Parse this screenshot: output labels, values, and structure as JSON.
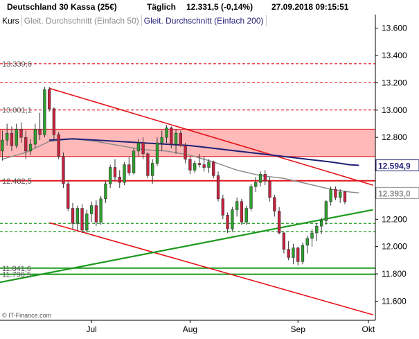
{
  "header": {
    "instrument": "Deutschland 30 Kassa (25€)",
    "interval": "Täglich",
    "quote": "12.331,5 (-0,14%)",
    "timestamp": "27.09.2018 09:15:51"
  },
  "legend": {
    "price": "Kurs",
    "ma50": "Gleit. Durchschnitt (Einfach 50)",
    "ma200": "Gleit. Durchschnitt (Einfach 200)"
  },
  "watermark": "© IT-Finance.com",
  "colors": {
    "up": "#2ca02c",
    "down": "#c8223f",
    "ma50": "#8c8c8c",
    "ma200": "#1f1f78",
    "trend_down": "#e3151a",
    "trend_up": "#1e9a1e",
    "zone": "#ff8080"
  },
  "chart_data": {
    "type": "candlestick",
    "ylim": [
      11460,
      13700
    ],
    "yticks": [
      11600,
      11800,
      12000,
      12200,
      12400,
      12600,
      12800,
      13000,
      13200,
      13400,
      13600
    ],
    "ytick_labels": [
      "11.600",
      "11.800",
      "12.000",
      "12.200",
      "12.400",
      "12.600",
      "12.800",
      "13.000",
      "13.200",
      "13.400",
      "13.600"
    ],
    "xlim": [
      -0.5,
      79.5
    ],
    "xticks": [
      {
        "label": "Jul",
        "i": 19
      },
      {
        "label": "Aug",
        "i": 40
      },
      {
        "label": "Sep",
        "i": 63
      },
      {
        "label": "Okt",
        "i": 78
      }
    ],
    "price_tags": [
      {
        "label": "12.594,9",
        "value": 12595,
        "color": "#1f1f78"
      },
      {
        "label": "12.393,0",
        "value": 12393,
        "color": "#8c8c8c"
      }
    ],
    "level_labels": [
      {
        "label": "13.339,6",
        "value": 13340
      },
      {
        "label": "13.001,1",
        "value": 13001
      },
      {
        "label": "12.482,5",
        "value": 12482
      },
      {
        "label": "11.841,6",
        "value": 11842
      },
      {
        "label": "11.796,5",
        "value": 11797
      }
    ],
    "levels": [
      {
        "value": 13340,
        "style": "dashed",
        "color": "#e3151a"
      },
      {
        "value": 13200,
        "style": "dashed",
        "color": "#e3151a"
      },
      {
        "value": 13001,
        "style": "dashed",
        "color": "#e3151a"
      },
      {
        "value": 12482,
        "style": "solid",
        "color": "#e3151a"
      },
      {
        "value": 12170,
        "style": "dashed",
        "color": "#1e9a1e"
      },
      {
        "value": 12110,
        "style": "dashed",
        "color": "#1e9a1e"
      },
      {
        "value": 11842,
        "style": "solid",
        "color": "#1e9a1e"
      },
      {
        "value": 11797,
        "style": "solid",
        "color": "#1e9a1e"
      }
    ],
    "zone": {
      "from": 12660,
      "to": 12860
    },
    "trendlines": [
      {
        "i1": 10,
        "v1": 13160,
        "i2": 79,
        "v2": 12450,
        "color": "#e3151a"
      },
      {
        "i1": 10,
        "v1": 12175,
        "i2": 79,
        "v2": 11500,
        "color": "#e3151a"
      },
      {
        "i1": -1,
        "v1": 11735,
        "i2": 79,
        "v2": 12270,
        "color": "#1e9a1e"
      }
    ],
    "ma50": [
      [
        0,
        12640
      ],
      [
        5,
        12690
      ],
      [
        10,
        12770
      ],
      [
        15,
        12790
      ],
      [
        20,
        12770
      ],
      [
        25,
        12740
      ],
      [
        30,
        12710
      ],
      [
        35,
        12700
      ],
      [
        40,
        12670
      ],
      [
        45,
        12620
      ],
      [
        50,
        12560
      ],
      [
        55,
        12520
      ],
      [
        60,
        12500
      ],
      [
        65,
        12460
      ],
      [
        70,
        12420
      ],
      [
        74,
        12400
      ],
      [
        76,
        12393
      ]
    ],
    "ma200": [
      [
        10,
        12780
      ],
      [
        15,
        12790
      ],
      [
        20,
        12780
      ],
      [
        25,
        12770
      ],
      [
        30,
        12760
      ],
      [
        35,
        12750
      ],
      [
        40,
        12740
      ],
      [
        45,
        12720
      ],
      [
        50,
        12700
      ],
      [
        55,
        12680
      ],
      [
        60,
        12660
      ],
      [
        65,
        12640
      ],
      [
        70,
        12620
      ],
      [
        74,
        12600
      ],
      [
        76,
        12595
      ]
    ],
    "candles": [
      {
        "o": 12700,
        "h": 12850,
        "l": 12630,
        "c": 12780
      },
      {
        "o": 12780,
        "h": 12900,
        "l": 12740,
        "c": 12830
      },
      {
        "o": 12830,
        "h": 12880,
        "l": 12700,
        "c": 12740
      },
      {
        "o": 12740,
        "h": 12900,
        "l": 12720,
        "c": 12860
      },
      {
        "o": 12860,
        "h": 12910,
        "l": 12760,
        "c": 12800
      },
      {
        "o": 12800,
        "h": 12850,
        "l": 12640,
        "c": 12700
      },
      {
        "o": 12700,
        "h": 12790,
        "l": 12670,
        "c": 12750
      },
      {
        "o": 12750,
        "h": 12900,
        "l": 12720,
        "c": 12860
      },
      {
        "o": 12860,
        "h": 12980,
        "l": 12780,
        "c": 12820
      },
      {
        "o": 12820,
        "h": 13170,
        "l": 12800,
        "c": 13150
      },
      {
        "o": 13150,
        "h": 13170,
        "l": 12990,
        "c": 13010
      },
      {
        "o": 13010,
        "h": 13020,
        "l": 12780,
        "c": 12820
      },
      {
        "o": 12820,
        "h": 12840,
        "l": 12640,
        "c": 12660
      },
      {
        "o": 12660,
        "h": 12690,
        "l": 12430,
        "c": 12460
      },
      {
        "o": 12460,
        "h": 12480,
        "l": 12260,
        "c": 12280
      },
      {
        "o": 12280,
        "h": 12320,
        "l": 12130,
        "c": 12170
      },
      {
        "o": 12170,
        "h": 12300,
        "l": 12120,
        "c": 12280
      },
      {
        "o": 12280,
        "h": 12310,
        "l": 12100,
        "c": 12120
      },
      {
        "o": 12120,
        "h": 12270,
        "l": 12100,
        "c": 12240
      },
      {
        "o": 12240,
        "h": 12330,
        "l": 12180,
        "c": 12300
      },
      {
        "o": 12300,
        "h": 12340,
        "l": 12150,
        "c": 12180
      },
      {
        "o": 12180,
        "h": 12370,
        "l": 12160,
        "c": 12350
      },
      {
        "o": 12350,
        "h": 12480,
        "l": 12320,
        "c": 12460
      },
      {
        "o": 12460,
        "h": 12600,
        "l": 12430,
        "c": 12580
      },
      {
        "o": 12580,
        "h": 12640,
        "l": 12480,
        "c": 12510
      },
      {
        "o": 12510,
        "h": 12560,
        "l": 12430,
        "c": 12470
      },
      {
        "o": 12470,
        "h": 12620,
        "l": 12450,
        "c": 12600
      },
      {
        "o": 12600,
        "h": 12660,
        "l": 12520,
        "c": 12540
      },
      {
        "o": 12540,
        "h": 12720,
        "l": 12530,
        "c": 12700
      },
      {
        "o": 12700,
        "h": 12790,
        "l": 12660,
        "c": 12760
      },
      {
        "o": 12760,
        "h": 12800,
        "l": 12640,
        "c": 12680
      },
      {
        "o": 12680,
        "h": 12690,
        "l": 12500,
        "c": 12520
      },
      {
        "o": 12520,
        "h": 12640,
        "l": 12460,
        "c": 12610
      },
      {
        "o": 12610,
        "h": 12800,
        "l": 12590,
        "c": 12760
      },
      {
        "o": 12760,
        "h": 12850,
        "l": 12700,
        "c": 12800
      },
      {
        "o": 12800,
        "h": 12890,
        "l": 12760,
        "c": 12870
      },
      {
        "o": 12870,
        "h": 12880,
        "l": 12720,
        "c": 12750
      },
      {
        "o": 12750,
        "h": 12860,
        "l": 12680,
        "c": 12830
      },
      {
        "o": 12830,
        "h": 12850,
        "l": 12730,
        "c": 12740
      },
      {
        "o": 12740,
        "h": 12760,
        "l": 12610,
        "c": 12640
      },
      {
        "o": 12640,
        "h": 12660,
        "l": 12530,
        "c": 12560
      },
      {
        "o": 12560,
        "h": 12630,
        "l": 12540,
        "c": 12610
      },
      {
        "o": 12610,
        "h": 12680,
        "l": 12580,
        "c": 12600
      },
      {
        "o": 12600,
        "h": 12660,
        "l": 12550,
        "c": 12580
      },
      {
        "o": 12580,
        "h": 12640,
        "l": 12540,
        "c": 12620
      },
      {
        "o": 12620,
        "h": 12630,
        "l": 12500,
        "c": 12520
      },
      {
        "o": 12520,
        "h": 12550,
        "l": 12330,
        "c": 12350
      },
      {
        "o": 12350,
        "h": 12380,
        "l": 12200,
        "c": 12230
      },
      {
        "o": 12230,
        "h": 12250,
        "l": 12100,
        "c": 12130
      },
      {
        "o": 12130,
        "h": 12290,
        "l": 12110,
        "c": 12270
      },
      {
        "o": 12270,
        "h": 12360,
        "l": 12220,
        "c": 12330
      },
      {
        "o": 12330,
        "h": 12350,
        "l": 12160,
        "c": 12180
      },
      {
        "o": 12180,
        "h": 12300,
        "l": 12160,
        "c": 12280
      },
      {
        "o": 12280,
        "h": 12460,
        "l": 12260,
        "c": 12440
      },
      {
        "o": 12440,
        "h": 12510,
        "l": 12400,
        "c": 12470
      },
      {
        "o": 12470,
        "h": 12550,
        "l": 12440,
        "c": 12530
      },
      {
        "o": 12530,
        "h": 12560,
        "l": 12450,
        "c": 12480
      },
      {
        "o": 12480,
        "h": 12510,
        "l": 12330,
        "c": 12360
      },
      {
        "o": 12360,
        "h": 12380,
        "l": 12220,
        "c": 12260
      },
      {
        "o": 12260,
        "h": 12290,
        "l": 12090,
        "c": 12100
      },
      {
        "o": 12100,
        "h": 12110,
        "l": 11950,
        "c": 11980
      },
      {
        "o": 11980,
        "h": 12040,
        "l": 11900,
        "c": 11920
      },
      {
        "o": 11920,
        "h": 12020,
        "l": 11870,
        "c": 11990
      },
      {
        "o": 11990,
        "h": 12000,
        "l": 11860,
        "c": 11890
      },
      {
        "o": 11890,
        "h": 12030,
        "l": 11870,
        "c": 12010
      },
      {
        "o": 12010,
        "h": 12080,
        "l": 11950,
        "c": 12060
      },
      {
        "o": 12060,
        "h": 12130,
        "l": 12000,
        "c": 12100
      },
      {
        "o": 12100,
        "h": 12170,
        "l": 12040,
        "c": 12150
      },
      {
        "o": 12150,
        "h": 12210,
        "l": 12090,
        "c": 12190
      },
      {
        "o": 12190,
        "h": 12340,
        "l": 12160,
        "c": 12330
      },
      {
        "o": 12330,
        "h": 12440,
        "l": 12300,
        "c": 12420
      },
      {
        "o": 12420,
        "h": 12440,
        "l": 12340,
        "c": 12360
      },
      {
        "o": 12360,
        "h": 12420,
        "l": 12320,
        "c": 12400
      },
      {
        "o": 12400,
        "h": 12410,
        "l": 12310,
        "c": 12330
      }
    ]
  }
}
